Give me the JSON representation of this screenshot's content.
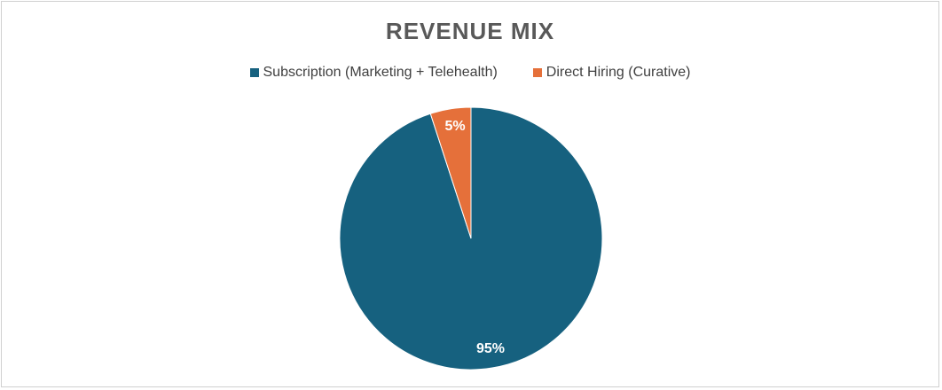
{
  "chart_data": {
    "type": "pie",
    "title": "REVENUE MIX",
    "categories": [
      "Subscription (Marketing + Telehealth)",
      "Direct Hiring (Curative)"
    ],
    "values": [
      95,
      5
    ],
    "data_labels": [
      "95%",
      "5%"
    ],
    "colors": [
      "#16617F",
      "#E5703A"
    ],
    "legend_position": "top"
  }
}
